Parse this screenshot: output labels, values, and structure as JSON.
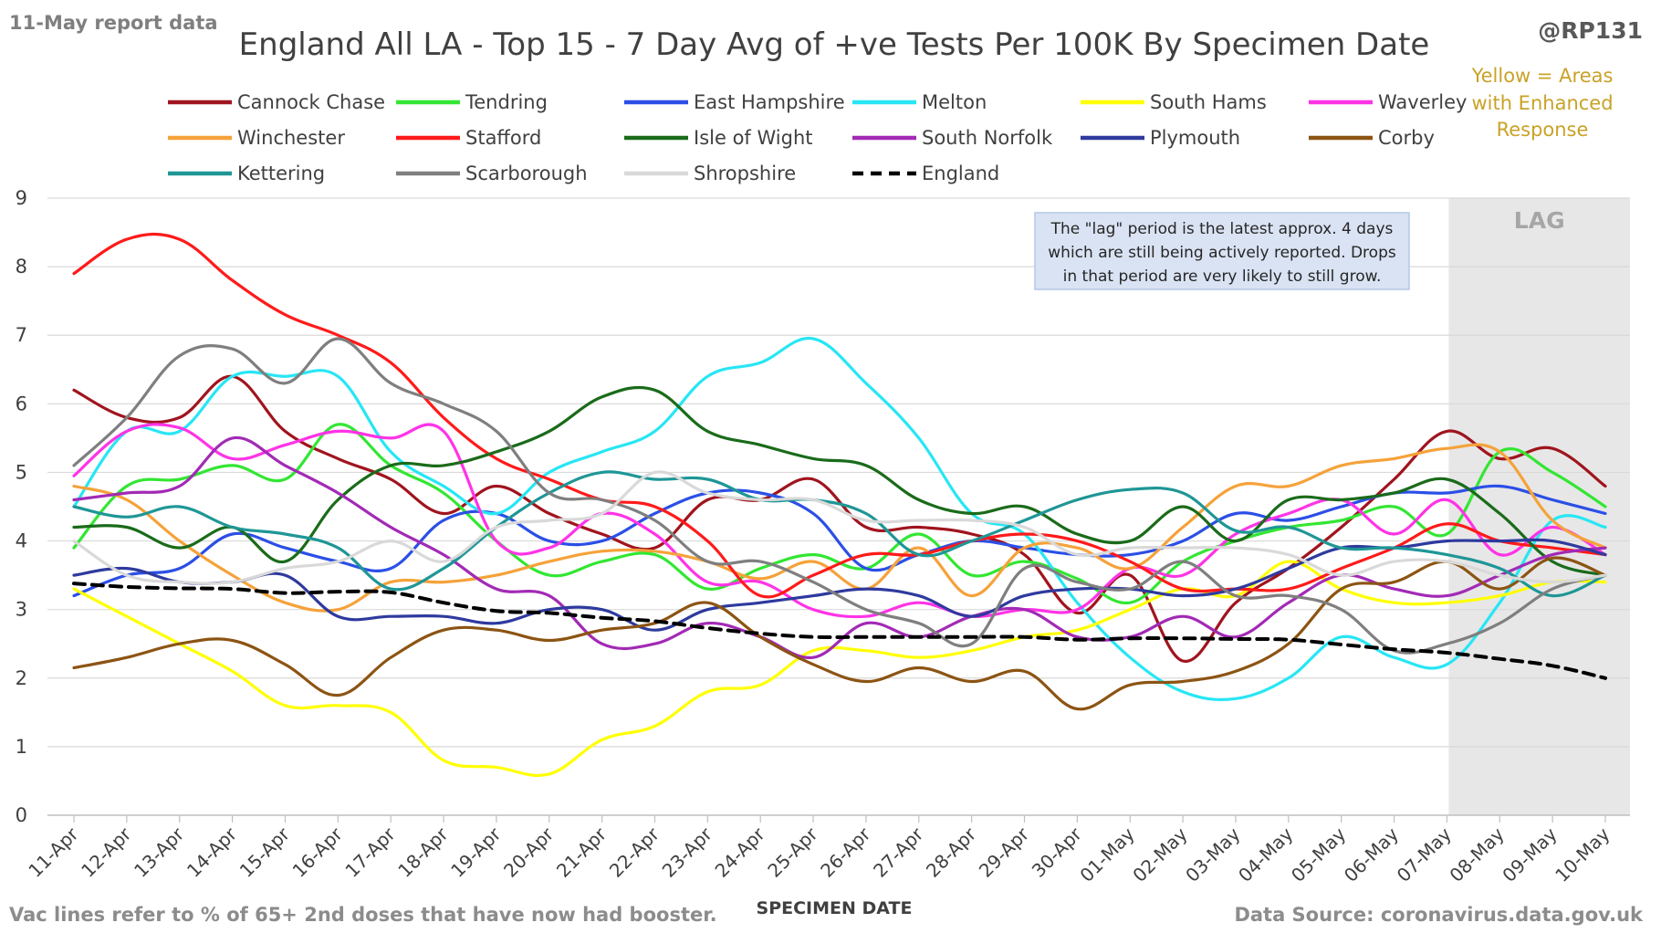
{
  "header": {
    "corner_left": "11-May report data",
    "title": "England All LA - Top 15 - 7 Day Avg of +ve Tests Per 100K By Specimen Date",
    "handle": "@RP131",
    "yellow_note": [
      "Yellow = Areas",
      "with Enhanced",
      "Response"
    ]
  },
  "footer": {
    "left": "Vac lines refer to % of 65+ 2nd doses that have now had booster.",
    "right": "Data Source: coronavirus.data.gov.uk"
  },
  "lag": {
    "label": "LAG",
    "start_category": "07-May",
    "note": [
      "The \"lag\" period is the latest approx. 4 days",
      "which are still being actively reported.  Drops",
      "in that period are very likely to still grow."
    ]
  },
  "colors": {
    "grid": "#d9d9d9",
    "lag_band": "#e7e7e7",
    "note_fill": "#dae3f3",
    "note_border": "#b4c7e7"
  },
  "chart_data": {
    "type": "line",
    "title": "England All LA - Top 15 - 7 Day Avg of +ve Tests Per 100K By Specimen Date",
    "xlabel": "SPECIMEN DATE",
    "ylabel": "",
    "ylim": [
      0,
      9
    ],
    "yticks": [
      0,
      1,
      2,
      3,
      4,
      5,
      6,
      7,
      8,
      9
    ],
    "grid": true,
    "legend": "top",
    "categories": [
      "11-Apr",
      "12-Apr",
      "13-Apr",
      "14-Apr",
      "15-Apr",
      "16-Apr",
      "17-Apr",
      "18-Apr",
      "19-Apr",
      "20-Apr",
      "21-Apr",
      "22-Apr",
      "23-Apr",
      "24-Apr",
      "25-Apr",
      "26-Apr",
      "27-Apr",
      "28-Apr",
      "29-Apr",
      "30-Apr",
      "01-May",
      "02-May",
      "03-May",
      "04-May",
      "05-May",
      "06-May",
      "07-May",
      "08-May",
      "09-May",
      "10-May"
    ],
    "series": [
      {
        "name": "Cannock Chase",
        "color": "#a0141e",
        "dash": false,
        "values": [
          6.2,
          5.8,
          5.8,
          6.4,
          5.6,
          5.2,
          4.9,
          4.4,
          4.8,
          4.4,
          4.1,
          3.9,
          4.6,
          4.6,
          4.9,
          4.2,
          4.2,
          4.1,
          3.8,
          2.95,
          3.5,
          2.25,
          3.1,
          3.6,
          4.2,
          4.9,
          5.6,
          5.2,
          5.35,
          4.8
        ]
      },
      {
        "name": "Tendring",
        "color": "#33e633",
        "dash": false,
        "values": [
          3.9,
          4.8,
          4.9,
          5.1,
          4.9,
          5.7,
          5.1,
          4.7,
          4.0,
          3.5,
          3.7,
          3.8,
          3.3,
          3.6,
          3.8,
          3.6,
          4.1,
          3.5,
          3.7,
          3.45,
          3.1,
          3.7,
          4.0,
          4.2,
          4.3,
          4.5,
          4.1,
          5.3,
          5.0,
          4.5
        ]
      },
      {
        "name": "East Hampshire",
        "color": "#2b4fe6",
        "dash": false,
        "values": [
          3.2,
          3.5,
          3.6,
          4.1,
          3.9,
          3.7,
          3.6,
          4.3,
          4.4,
          4.0,
          4.0,
          4.4,
          4.7,
          4.7,
          4.4,
          3.6,
          3.8,
          4.0,
          3.9,
          3.8,
          3.8,
          4.0,
          4.4,
          4.3,
          4.5,
          4.7,
          4.7,
          4.8,
          4.6,
          4.4
        ]
      },
      {
        "name": "Melton",
        "color": "#27e6f5",
        "dash": false,
        "values": [
          4.5,
          5.6,
          5.6,
          6.4,
          6.4,
          6.4,
          5.3,
          4.8,
          4.4,
          5.0,
          5.3,
          5.6,
          6.4,
          6.6,
          6.95,
          6.3,
          5.5,
          4.4,
          4.1,
          3.1,
          2.3,
          1.8,
          1.7,
          2.0,
          2.6,
          2.3,
          2.2,
          3.1,
          4.3,
          4.2
        ]
      },
      {
        "name": "South Hams",
        "color": "#ffff00",
        "dash": false,
        "values": [
          3.3,
          2.9,
          2.5,
          2.1,
          1.6,
          1.6,
          1.5,
          0.8,
          0.7,
          0.6,
          1.1,
          1.3,
          1.8,
          1.9,
          2.4,
          2.4,
          2.3,
          2.4,
          2.6,
          2.7,
          3.0,
          3.3,
          3.2,
          3.7,
          3.3,
          3.1,
          3.1,
          3.2,
          3.4,
          3.4
        ]
      },
      {
        "name": "Waverley",
        "color": "#ff33e6",
        "dash": false,
        "values": [
          4.95,
          5.6,
          5.65,
          5.2,
          5.4,
          5.6,
          5.5,
          5.6,
          4.0,
          3.9,
          4.4,
          4.1,
          3.4,
          3.4,
          3.0,
          2.9,
          3.1,
          2.9,
          3.0,
          3.0,
          3.6,
          3.5,
          4.1,
          4.4,
          4.6,
          4.1,
          4.6,
          3.8,
          4.2,
          3.8
        ]
      },
      {
        "name": "Winchester",
        "color": "#f5a23a",
        "dash": false,
        "values": [
          4.8,
          4.6,
          4.0,
          3.5,
          3.1,
          3.0,
          3.4,
          3.4,
          3.5,
          3.7,
          3.85,
          3.85,
          3.7,
          3.45,
          3.7,
          3.3,
          3.9,
          3.2,
          3.9,
          3.9,
          3.6,
          4.2,
          4.8,
          4.8,
          5.1,
          5.2,
          5.35,
          5.3,
          4.3,
          3.9
        ]
      },
      {
        "name": "Stafford",
        "color": "#ff1a1a",
        "dash": false,
        "values": [
          7.9,
          8.4,
          8.4,
          7.8,
          7.3,
          7.0,
          6.6,
          5.8,
          5.2,
          4.9,
          4.6,
          4.5,
          4.0,
          3.2,
          3.5,
          3.8,
          3.8,
          4.0,
          4.1,
          4.0,
          3.7,
          3.3,
          3.3,
          3.3,
          3.6,
          3.9,
          4.25,
          4.0,
          3.9,
          3.8
        ]
      },
      {
        "name": "Isle of Wight",
        "color": "#1a6b1a",
        "dash": false,
        "values": [
          4.2,
          4.2,
          3.9,
          4.2,
          3.7,
          4.6,
          5.1,
          5.1,
          5.3,
          5.6,
          6.1,
          6.2,
          5.6,
          5.4,
          5.2,
          5.1,
          4.6,
          4.4,
          4.5,
          4.1,
          4.0,
          4.5,
          4.0,
          4.6,
          4.6,
          4.7,
          4.9,
          4.4,
          3.7,
          3.5
        ]
      },
      {
        "name": "South Norfolk",
        "color": "#a22ab5",
        "dash": false,
        "values": [
          4.6,
          4.7,
          4.8,
          5.5,
          5.1,
          4.7,
          4.2,
          3.8,
          3.3,
          3.2,
          2.5,
          2.5,
          2.8,
          2.6,
          2.3,
          2.8,
          2.6,
          2.9,
          3.0,
          2.6,
          2.6,
          2.9,
          2.6,
          3.1,
          3.5,
          3.3,
          3.2,
          3.5,
          3.8,
          3.9
        ]
      },
      {
        "name": "Plymouth",
        "color": "#2e3a9e",
        "dash": false,
        "values": [
          3.5,
          3.6,
          3.4,
          3.4,
          3.5,
          2.9,
          2.9,
          2.9,
          2.8,
          3.0,
          3.0,
          2.7,
          3.0,
          3.1,
          3.2,
          3.3,
          3.2,
          2.9,
          3.2,
          3.3,
          3.3,
          3.2,
          3.3,
          3.6,
          3.9,
          3.9,
          4.0,
          4.0,
          4.0,
          3.8
        ]
      },
      {
        "name": "Corby",
        "color": "#8c5413",
        "dash": false,
        "values": [
          2.15,
          2.3,
          2.5,
          2.55,
          2.2,
          1.75,
          2.3,
          2.7,
          2.7,
          2.55,
          2.7,
          2.8,
          3.1,
          2.6,
          2.2,
          1.95,
          2.15,
          1.95,
          2.1,
          1.55,
          1.9,
          1.95,
          2.1,
          2.5,
          3.3,
          3.4,
          3.7,
          3.3,
          3.75,
          3.5
        ]
      },
      {
        "name": "Kettering",
        "color": "#1f9696",
        "dash": false,
        "values": [
          4.5,
          4.35,
          4.5,
          4.2,
          4.1,
          3.9,
          3.3,
          3.6,
          4.2,
          4.7,
          5.0,
          4.9,
          4.9,
          4.6,
          4.6,
          4.4,
          3.8,
          4.0,
          4.3,
          4.6,
          4.75,
          4.7,
          4.15,
          4.2,
          3.9,
          3.9,
          3.8,
          3.6,
          3.2,
          3.5
        ]
      },
      {
        "name": "Scarborough",
        "color": "#7f7f7f",
        "dash": false,
        "values": [
          5.1,
          5.8,
          6.7,
          6.8,
          6.3,
          6.95,
          6.3,
          6.0,
          5.6,
          4.7,
          4.6,
          4.3,
          3.7,
          3.7,
          3.4,
          3.0,
          2.8,
          2.5,
          3.6,
          3.4,
          3.3,
          3.7,
          3.2,
          3.2,
          3.0,
          2.4,
          2.5,
          2.8,
          3.3,
          3.5
        ]
      },
      {
        "name": "Shropshire",
        "color": "#d9d9d9",
        "dash": false,
        "values": [
          4.0,
          3.5,
          3.4,
          3.4,
          3.6,
          3.7,
          4.0,
          3.7,
          4.2,
          4.3,
          4.4,
          5.0,
          4.7,
          4.6,
          4.6,
          4.3,
          4.3,
          4.3,
          4.2,
          3.8,
          3.9,
          3.9,
          3.9,
          3.8,
          3.5,
          3.7,
          3.7,
          3.5,
          3.4,
          3.5
        ]
      },
      {
        "name": "England",
        "color": "#000000",
        "dash": true,
        "values": [
          3.38,
          3.33,
          3.31,
          3.3,
          3.24,
          3.26,
          3.25,
          3.1,
          2.98,
          2.95,
          2.88,
          2.83,
          2.73,
          2.65,
          2.6,
          2.6,
          2.6,
          2.6,
          2.6,
          2.56,
          2.58,
          2.58,
          2.57,
          2.56,
          2.49,
          2.42,
          2.37,
          2.28,
          2.18,
          2.0
        ]
      }
    ]
  }
}
